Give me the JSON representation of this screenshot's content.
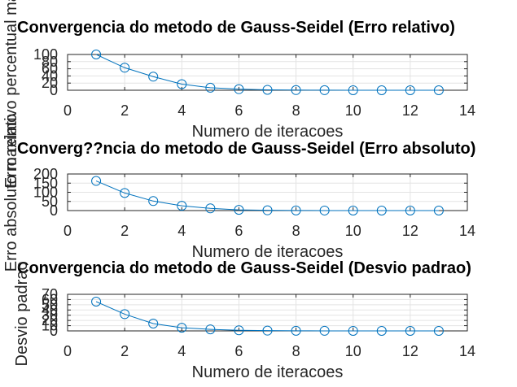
{
  "chart_data": [
    {
      "type": "line",
      "title": "Convergencia do metodo de Gauss-Seidel (Erro relativo)",
      "xlabel": "Numero de iteracoes",
      "ylabel": "Erro relativo percentual maximo",
      "xlim": [
        0,
        14
      ],
      "ylim": [
        0,
        100
      ],
      "xticks": [
        0,
        2,
        4,
        6,
        8,
        10,
        12,
        14
      ],
      "yticks": [
        0,
        20,
        40,
        60,
        80,
        100
      ],
      "grid": true,
      "marker": "circle",
      "color": "#0072bd",
      "x": [
        1,
        2,
        3,
        4,
        5,
        6,
        7,
        8,
        9,
        10,
        11,
        12,
        13
      ],
      "y": [
        100,
        63,
        38,
        17,
        7,
        3,
        1.2,
        0.5,
        0.2,
        0.1,
        0.05,
        0.02,
        0.01
      ]
    },
    {
      "type": "line",
      "title": "Converg??ncia do metodo de Gauss-Seidel (Erro absoluto)",
      "xlabel": "Numero de iteracoes",
      "ylabel": "Erro absoluto maximo",
      "xlim": [
        0,
        14
      ],
      "ylim": [
        0,
        200
      ],
      "xticks": [
        0,
        2,
        4,
        6,
        8,
        10,
        12,
        14
      ],
      "yticks": [
        0,
        50,
        100,
        150,
        200
      ],
      "grid": true,
      "marker": "circle",
      "color": "#0072bd",
      "x": [
        1,
        2,
        3,
        4,
        5,
        6,
        7,
        8,
        9,
        10,
        11,
        12,
        13
      ],
      "y": [
        162,
        96,
        52,
        26,
        12,
        4,
        1.5,
        0.6,
        0.25,
        0.1,
        0.04,
        0.02,
        0.01
      ]
    },
    {
      "type": "line",
      "title": "Convergencia do metodo de Gauss-Seidel (Desvio padrao)",
      "xlabel": "Numero de iteracoes",
      "ylabel": "Desvio padrao",
      "xlim": [
        0,
        14
      ],
      "ylim": [
        0,
        70
      ],
      "xticks": [
        0,
        2,
        4,
        6,
        8,
        10,
        12,
        14
      ],
      "yticks": [
        0,
        10,
        20,
        30,
        40,
        50,
        60,
        70
      ],
      "grid": true,
      "marker": "circle",
      "color": "#0072bd",
      "x": [
        1,
        2,
        3,
        4,
        5,
        6,
        7,
        8,
        9,
        10,
        11,
        12,
        13
      ],
      "y": [
        56,
        32,
        14,
        6,
        3,
        1.2,
        0.5,
        0.2,
        0.1,
        0.05,
        0.02,
        0.01,
        0.005
      ]
    }
  ]
}
